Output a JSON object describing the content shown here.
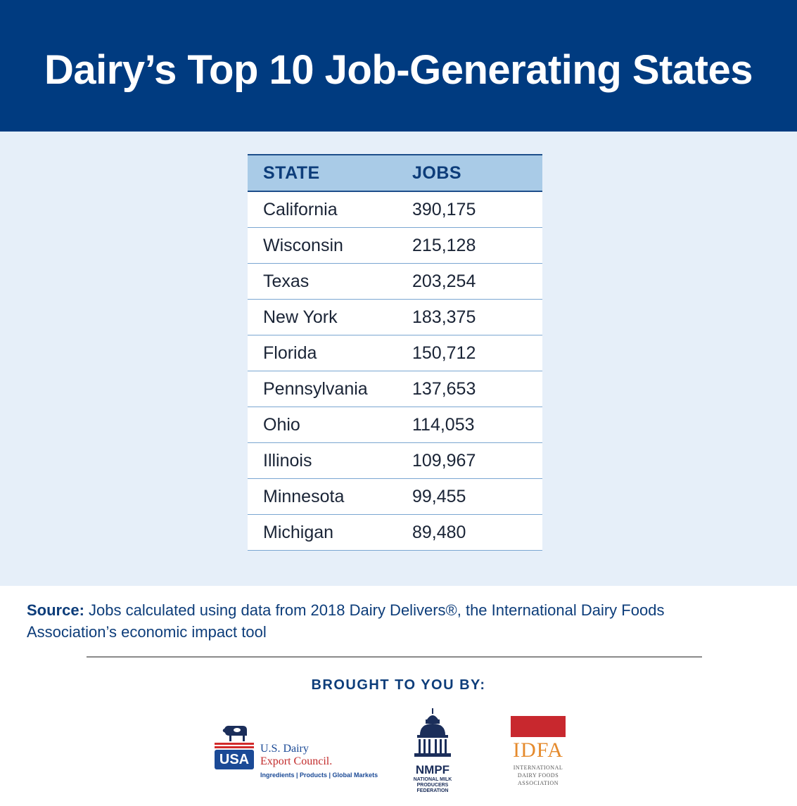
{
  "title": "Dairy’s Top 10 Job-Generating States",
  "table": {
    "headers": [
      "STATE",
      "JOBS"
    ],
    "rows": [
      {
        "state": "California",
        "jobs": "390,175"
      },
      {
        "state": "Wisconsin",
        "jobs": "215,128"
      },
      {
        "state": "Texas",
        "jobs": "203,254"
      },
      {
        "state": "New York",
        "jobs": "183,375"
      },
      {
        "state": "Florida",
        "jobs": "150,712"
      },
      {
        "state": "Pennsylvania",
        "jobs": "137,653"
      },
      {
        "state": "Ohio",
        "jobs": "114,053"
      },
      {
        "state": "Illinois",
        "jobs": "109,967"
      },
      {
        "state": "Minnesota",
        "jobs": "99,455"
      },
      {
        "state": "Michigan",
        "jobs": "89,480"
      }
    ]
  },
  "source": {
    "label": "Source:",
    "text": "Jobs calculated using data from 2018 Dairy Delivers®, the International Dairy Foods Association’s economic impact tool"
  },
  "brought_by": "BROUGHT TO YOU BY:",
  "logos": {
    "usdec": {
      "badge": "USA",
      "name_line1": "U.S. Dairy",
      "name_line2": "Export Council.",
      "tagline": "Ingredients | Products | Global Markets"
    },
    "nmpf": {
      "abbr": "NMPF",
      "line1": "NATIONAL MILK",
      "line2": "PRODUCERS FEDERATION"
    },
    "idfa": {
      "abbr": "IDFA",
      "line1": "INTERNATIONAL",
      "line2": "DAIRY FOODS",
      "line3": "ASSOCIATION"
    }
  },
  "colors": {
    "header_bg": "#003b80",
    "band_bg": "#e6eff9",
    "table_header_bg": "#a9cbe7",
    "text_blue": "#0d3d7a"
  }
}
